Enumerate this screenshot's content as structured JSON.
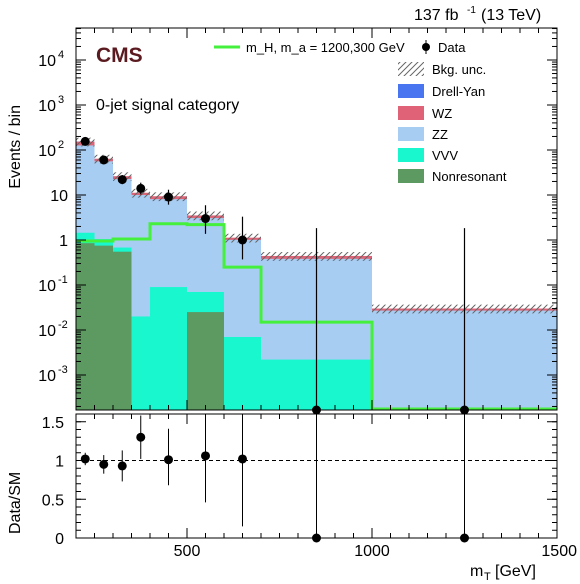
{
  "header": {
    "experiment": "CMS",
    "lumi_value": "137 fb",
    "lumi_exp": "-1",
    "lumi_energy": "(13 TeV)"
  },
  "colors": {
    "drell_yan": "#4a75f0",
    "wz": "#e06276",
    "zz": "#a8cdf3",
    "vvv": "#19f7cf",
    "nonresonant": "#5d9a62",
    "signal": "#44f03c",
    "data": "#000000",
    "frame": "#000000"
  },
  "chart_data": [
    {
      "type": "bar",
      "title": "0-jet signal category",
      "xlabel": "m_T [GeV]",
      "ylabel": "Events / bin",
      "yscale": "log",
      "xlim": [
        200,
        1500
      ],
      "ylim": [
        0.0002,
        50000
      ],
      "x_ticks": [
        "500",
        "1000",
        "1500"
      ],
      "y_ticks": [
        "10^-3",
        "10^-2",
        "10^-1",
        "1",
        "10",
        "10^2",
        "10^3",
        "10^4"
      ],
      "bin_edges": [
        200,
        250,
        300,
        350,
        400,
        500,
        600,
        700,
        1000,
        1500
      ],
      "stack": [
        {
          "name": "Nonresonant",
          "values": [
            0.85,
            0.75,
            0.55,
            0.0,
            0.0,
            0.025,
            0.0,
            0.0,
            0.0
          ]
        },
        {
          "name": "VVV",
          "values": [
            0.6,
            0.3,
            0.13,
            0.02,
            0.09,
            0.045,
            0.007,
            0.0022,
            0.0
          ]
        },
        {
          "name": "ZZ",
          "values": [
            125,
            55,
            22,
            10,
            8,
            3,
            1.0,
            0.38,
            0.027
          ]
        },
        {
          "name": "WZ",
          "values": [
            27,
            8,
            3.5,
            1.2,
            1.3,
            0.45,
            0.12,
            0.06,
            0.003
          ]
        },
        {
          "name": "Drell-Yan",
          "values": [
            0.4,
            0.0,
            0.0,
            0.0,
            0.0,
            0.0,
            0.0,
            0.0,
            0.0
          ]
        }
      ],
      "bkg_unc": {
        "name": "Bkg. unc.",
        "relative": 0.22
      },
      "signal": {
        "name": "m_H, m_a = 1200,300 GeV",
        "values": [
          0.95,
          0.95,
          1.05,
          1.05,
          2.3,
          2.2,
          0.25,
          0.015,
          0.00016
        ]
      },
      "data": {
        "name": "Data",
        "x": [
          225,
          275,
          325,
          375,
          450,
          550,
          650,
          850,
          1250
        ],
        "y": [
          155,
          60,
          22,
          14,
          9,
          3,
          1,
          0,
          0
        ],
        "err_low": [
          12,
          7.7,
          4.6,
          3.7,
          2.9,
          1.63,
          0.63,
          0,
          0
        ],
        "err_high": [
          13,
          8.8,
          5.7,
          4.8,
          4.1,
          2.92,
          2.3,
          1.84,
          1.84
        ]
      },
      "legend": [
        "m_H, m_a = 1200,300 GeV",
        "Data",
        "Bkg. unc.",
        "Drell-Yan",
        "WZ",
        "ZZ",
        "VVV",
        "Nonresonant"
      ],
      "legend_position": "top-right"
    },
    {
      "type": "scatter",
      "xlabel": "m_T [GeV]",
      "ylabel": "Data/SM",
      "xlim": [
        200,
        1500
      ],
      "ylim": [
        0,
        1.6
      ],
      "x_ticks": [
        "500",
        "1000",
        "1500"
      ],
      "y_ticks": [
        "0",
        "0.5",
        "1",
        "1.5"
      ],
      "reference_line": 1,
      "x": [
        225,
        275,
        325,
        375,
        450,
        550,
        650,
        850,
        1250
      ],
      "y": [
        1.02,
        0.95,
        0.93,
        1.3,
        1.01,
        1.06,
        1.02,
        0,
        0
      ],
      "err_low": [
        0.08,
        0.12,
        0.2,
        0.28,
        0.33,
        0.6,
        0.87,
        0,
        0
      ],
      "err_high": [
        0.08,
        0.12,
        0.2,
        0.28,
        0.4,
        0.9,
        1.6,
        1.6,
        1.6
      ]
    }
  ]
}
